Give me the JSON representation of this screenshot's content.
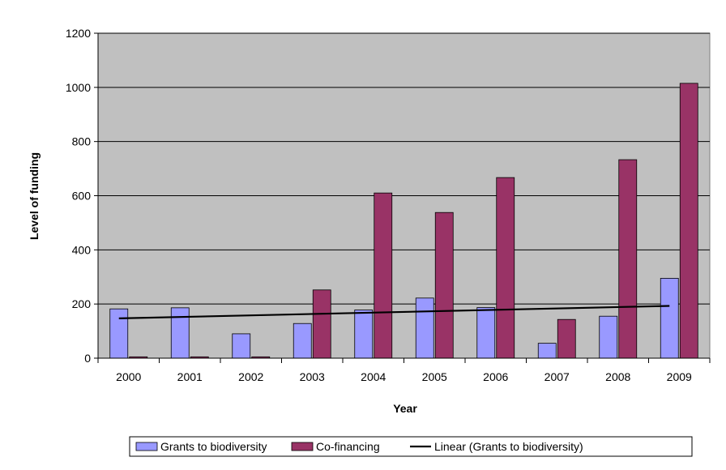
{
  "chart_data": {
    "type": "bar",
    "categories": [
      "2000",
      "2001",
      "2002",
      "2003",
      "2004",
      "2005",
      "2006",
      "2007",
      "2008",
      "2009"
    ],
    "series": [
      {
        "name": "Grants to biodiversity",
        "color": "#9999ff",
        "values": [
          182,
          186,
          90,
          128,
          178,
          222,
          187,
          55,
          155,
          295
        ]
      },
      {
        "name": "Co-financing",
        "color": "#993366",
        "values": [
          5,
          5,
          5,
          252,
          610,
          538,
          667,
          143,
          733,
          1015
        ]
      }
    ],
    "trendline": {
      "name": "Linear (Grants to biodiversity)",
      "color": "#000000",
      "start": 147,
      "end": 193
    },
    "xlabel": "Year",
    "ylabel": "Level of funding",
    "ylim": [
      0,
      1200
    ],
    "yticks": [
      "0",
      "200",
      "400",
      "600",
      "800",
      "1000",
      "1200"
    ],
    "plot_background": "#c0c0c0",
    "grid": true,
    "legend_position": "bottom"
  }
}
